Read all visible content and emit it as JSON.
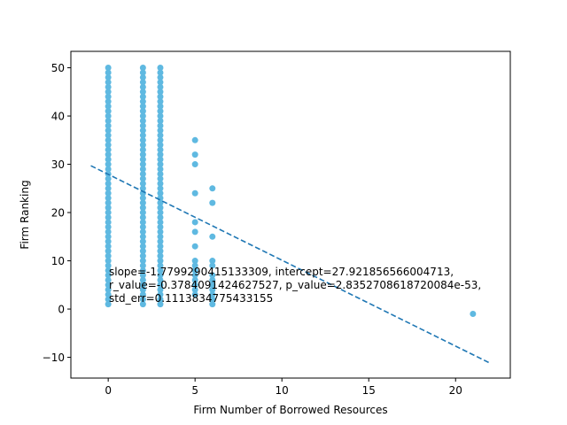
{
  "chart_data": {
    "type": "scatter",
    "title": "",
    "xlabel": "Firm Number of Borrowed Resources",
    "ylabel": "Firm Ranking",
    "xlim": [
      -2.15,
      23.15
    ],
    "ylim": [
      -14.3,
      53.4
    ],
    "xticks": [
      0,
      5,
      10,
      15,
      20
    ],
    "yticks": [
      -10,
      0,
      10,
      20,
      30,
      40,
      50
    ],
    "grid": false,
    "colors": {
      "points": "#5fb9e1",
      "line": "#1f77b4",
      "axes": "#000000"
    },
    "series": [
      {
        "x": [
          0,
          2,
          3
        ],
        "y_range": [
          1,
          50
        ],
        "y_step": 1,
        "note_type": "dense-column"
      }
    ],
    "sparse_points": [
      {
        "x": 5,
        "y": 35
      },
      {
        "x": 5,
        "y": 32
      },
      {
        "x": 5,
        "y": 30
      },
      {
        "x": 5,
        "y": 24
      },
      {
        "x": 5,
        "y": 18
      },
      {
        "x": 5,
        "y": 16
      },
      {
        "x": 5,
        "y": 13
      },
      {
        "x": 5,
        "y": 10
      },
      {
        "x": 5,
        "y": 9
      },
      {
        "x": 5,
        "y": 8
      },
      {
        "x": 5,
        "y": 7
      },
      {
        "x": 5,
        "y": 6
      },
      {
        "x": 5,
        "y": 5
      },
      {
        "x": 5,
        "y": 4
      },
      {
        "x": 5,
        "y": 3
      },
      {
        "x": 6,
        "y": 25
      },
      {
        "x": 6,
        "y": 22
      },
      {
        "x": 6,
        "y": 15
      },
      {
        "x": 6,
        "y": 10
      },
      {
        "x": 6,
        "y": 9
      },
      {
        "x": 6,
        "y": 7
      },
      {
        "x": 6,
        "y": 6
      },
      {
        "x": 6,
        "y": 5
      },
      {
        "x": 6,
        "y": 4
      },
      {
        "x": 6,
        "y": 3
      },
      {
        "x": 6,
        "y": 2
      },
      {
        "x": 6,
        "y": 1
      },
      {
        "x": 21,
        "y": -1
      }
    ],
    "regression": {
      "slope": -1.7799290415133309,
      "intercept": 27.921856566004713,
      "x_start": -1,
      "x_end": 22
    },
    "annotation_lines": [
      "slope=-1.7799290415133309, intercept=27.921856566004713,",
      "r_value=-0.3784091424627527, p_value=2.8352708618720084e-53,",
      "std_err=0.1113834775433155"
    ]
  }
}
